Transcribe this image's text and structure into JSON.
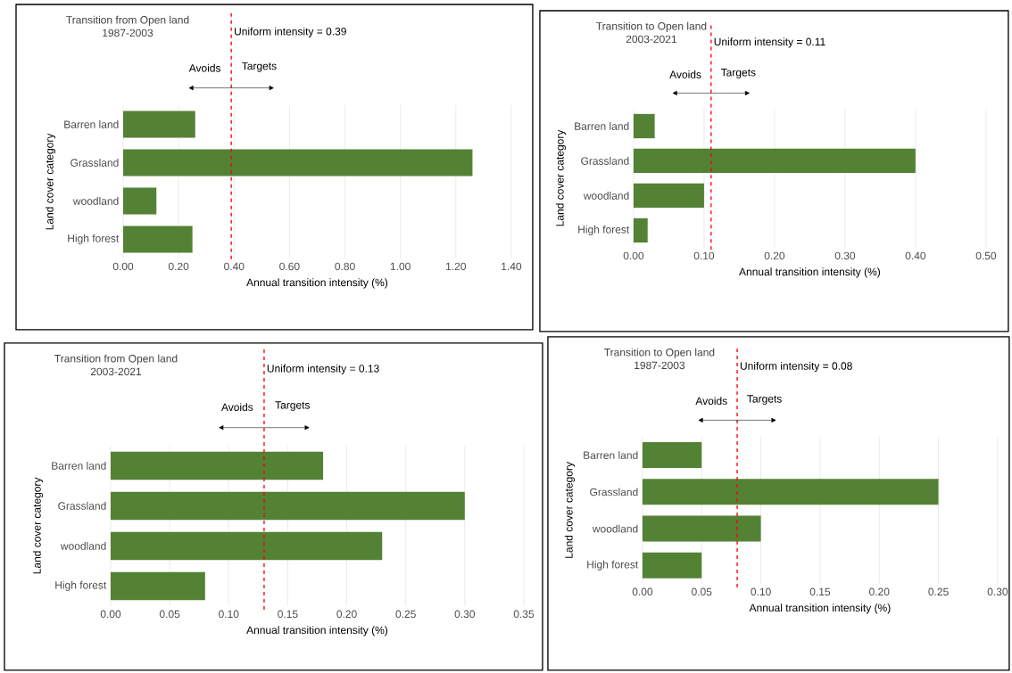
{
  "chart_data": [
    {
      "type": "bar",
      "orientation": "horizontal",
      "title": "Transition from Open land",
      "subtitle": "1987-2003",
      "xlabel": "Annual transition intensity (%)",
      "ylabel": "Land cover category",
      "categories": [
        "Barren land",
        "Grassland",
        "woodland",
        "High forest"
      ],
      "values": [
        0.26,
        1.26,
        0.12,
        0.25
      ],
      "color": "#548235",
      "xlim": [
        0,
        1.4
      ],
      "xticks": [
        {
          "value": 0,
          "label": "0.00"
        },
        {
          "value": 0.2,
          "label": "0.20"
        },
        {
          "value": 0.4,
          "label": "0.40"
        },
        {
          "value": 0.6,
          "label": "0.60"
        },
        {
          "value": 0.8,
          "label": "0.80"
        },
        {
          "value": 1.0,
          "label": "1.00"
        },
        {
          "value": 1.2,
          "label": "1.20"
        },
        {
          "value": 1.4,
          "label": "1.40"
        }
      ],
      "grid": "x",
      "ref_lines": [
        {
          "axis": "x",
          "value": 0.39,
          "label": "Uniform intensity = 0.39",
          "color": "#ff0000",
          "line_style": "dashed"
        }
      ],
      "annotations": [
        "Avoids",
        "Targets"
      ]
    },
    {
      "type": "bar",
      "orientation": "horizontal",
      "title": "Transition to Open land",
      "subtitle": "2003-2021",
      "xlabel": "Annual transition intensity (%)",
      "ylabel": "Land cover category",
      "categories": [
        "Barren land",
        "Grassland",
        "woodland",
        "High forest"
      ],
      "values": [
        0.03,
        0.4,
        0.1,
        0.02
      ],
      "color": "#548235",
      "xlim": [
        0,
        0.5
      ],
      "xticks": [
        {
          "value": 0,
          "label": "0.00"
        },
        {
          "value": 0.1,
          "label": "0.10"
        },
        {
          "value": 0.2,
          "label": "0.20"
        },
        {
          "value": 0.3,
          "label": "0.30"
        },
        {
          "value": 0.4,
          "label": "0.40"
        },
        {
          "value": 0.5,
          "label": "0.50"
        }
      ],
      "grid": "x",
      "ref_lines": [
        {
          "axis": "x",
          "value": 0.11,
          "label": "Uniform intensity = 0.11",
          "color": "#ff0000",
          "line_style": "dashed"
        }
      ],
      "annotations": [
        "Avoids",
        "Targets"
      ]
    },
    {
      "type": "bar",
      "orientation": "horizontal",
      "title": "Transition from Open land",
      "subtitle": "2003-2021",
      "xlabel": "Annual transition intensity (%)",
      "ylabel": "Land cover category",
      "categories": [
        "Barren land",
        "Grassland",
        "woodland",
        "High forest"
      ],
      "values": [
        0.18,
        0.3,
        0.23,
        0.08
      ],
      "color": "#548235",
      "xlim": [
        0,
        0.35
      ],
      "xticks": [
        {
          "value": 0,
          "label": "0.00"
        },
        {
          "value": 0.05,
          "label": "0.05"
        },
        {
          "value": 0.1,
          "label": "0.10"
        },
        {
          "value": 0.15,
          "label": "0.15"
        },
        {
          "value": 0.2,
          "label": "0.20"
        },
        {
          "value": 0.25,
          "label": "0.25"
        },
        {
          "value": 0.3,
          "label": "0.30"
        },
        {
          "value": 0.35,
          "label": "0.35"
        }
      ],
      "grid": "x",
      "ref_lines": [
        {
          "axis": "x",
          "value": 0.13,
          "label": "Uniform intensity = 0.13",
          "color": "#ff0000",
          "line_style": "dashed"
        }
      ],
      "annotations": [
        "Avoids",
        "Targets"
      ]
    },
    {
      "type": "bar",
      "orientation": "horizontal",
      "title": "Transition to Open land",
      "subtitle": "1987-2003",
      "xlabel": "Annual transition intensity (%)",
      "ylabel": "Land cover category",
      "categories": [
        "Barren land",
        "Grassland",
        "woodland",
        "High forest"
      ],
      "values": [
        0.05,
        0.25,
        0.1,
        0.05
      ],
      "color": "#548235",
      "xlim": [
        0,
        0.3
      ],
      "xticks": [
        {
          "value": 0,
          "label": "0.00"
        },
        {
          "value": 0.05,
          "label": "0.05"
        },
        {
          "value": 0.1,
          "label": "0.10"
        },
        {
          "value": 0.15,
          "label": "0.15"
        },
        {
          "value": 0.2,
          "label": "0.20"
        },
        {
          "value": 0.25,
          "label": "0.25"
        },
        {
          "value": 0.3,
          "label": "0.30"
        }
      ],
      "grid": "x",
      "ref_lines": [
        {
          "axis": "x",
          "value": 0.08,
          "label": "Uniform intensity = 0.08",
          "color": "#ff0000",
          "line_style": "dashed"
        }
      ],
      "annotations": [
        "Avoids",
        "Targets"
      ]
    }
  ]
}
